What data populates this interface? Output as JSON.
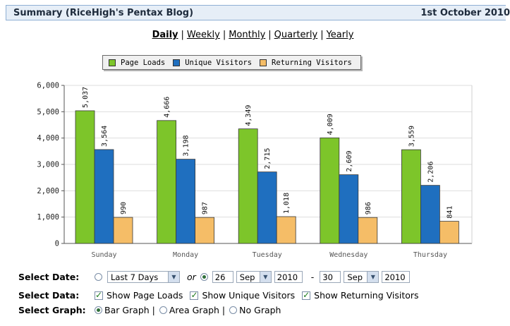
{
  "header": {
    "title": "Summary (RiceHigh's Pentax Blog)",
    "date": "1st October 2010"
  },
  "periods": [
    "Daily",
    "Weekly",
    "Monthly",
    "Quarterly",
    "Yearly"
  ],
  "active_period": "Daily",
  "legend": [
    "Page Loads",
    "Unique Visitors",
    "Returning Visitors"
  ],
  "chart_data": {
    "type": "bar",
    "categories": [
      "Sunday",
      "Monday",
      "Tuesday",
      "Wednesday",
      "Thursday"
    ],
    "series": [
      {
        "name": "Page Loads",
        "values": [
          5037,
          4666,
          4349,
          4009,
          3559
        ],
        "labels": [
          "5,037",
          "4,666",
          "4,349",
          "4,009",
          "3,559"
        ],
        "color": "#7dc52a"
      },
      {
        "name": "Unique Visitors",
        "values": [
          3564,
          3198,
          2715,
          2609,
          2206
        ],
        "labels": [
          "3,564",
          "3,198",
          "2,715",
          "2,609",
          "2,206"
        ],
        "color": "#1f6fbf"
      },
      {
        "name": "Returning Visitors",
        "values": [
          990,
          987,
          1018,
          986,
          841
        ],
        "labels": [
          "990",
          "987",
          "1,018",
          "986",
          "841"
        ],
        "color": "#f5bd67"
      }
    ],
    "yticks": [
      "0",
      "1,000",
      "2,000",
      "3,000",
      "4,000",
      "5,000",
      "6,000"
    ],
    "ylim": [
      0,
      6000
    ],
    "grid": true,
    "legend_position": "top"
  },
  "controls": {
    "select_date": {
      "label": "Select Date:",
      "range_option": "Last 7 Days",
      "or_text": "or",
      "from_day": "26",
      "from_month": "Sep",
      "from_year": "2010",
      "dash": "-",
      "to_day": "30",
      "to_month": "Sep",
      "to_year": "2010"
    },
    "select_data": {
      "label": "Select Data:",
      "options": [
        "Show Page Loads",
        "Show Unique Visitors",
        "Show Returning Visitors"
      ]
    },
    "select_graph": {
      "label": "Select Graph:",
      "options": [
        "Bar Graph |",
        "Area Graph |",
        "No Graph"
      ]
    }
  }
}
